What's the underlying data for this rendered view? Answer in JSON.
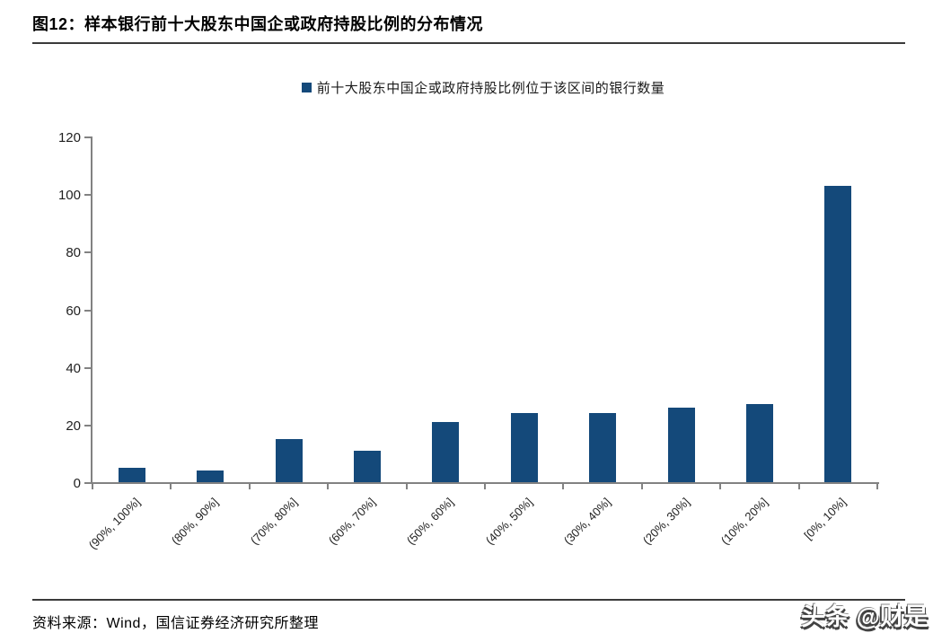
{
  "figure": {
    "title": "图12：样本银行前十大股东中国企或政府持股比例的分布情况",
    "source": "资料来源：Wind，国信证券经济研究所整理",
    "watermark": "头条 @财是"
  },
  "chart_data": {
    "type": "bar",
    "title": "样本银行前十大股东中国企或政府持股比例的分布情况",
    "legend": [
      "前十大股东中国企或政府持股比例位于该区间的银行数量"
    ],
    "legend_position": "top-center",
    "categories": [
      "(90%, 100%]",
      "(80%, 90%]",
      "(70%, 80%]",
      "(60%, 70%]",
      "(50%, 60%]",
      "(40%, 50%]",
      "(30%, 40%]",
      "(20%, 30%]",
      "(10%, 20%]",
      "[0%, 10%]"
    ],
    "values": [
      5,
      4,
      15,
      11,
      21,
      24,
      24,
      26,
      27,
      103
    ],
    "xlabel": "",
    "ylabel": "",
    "ylim": [
      0,
      120
    ],
    "yticks": [
      0,
      20,
      40,
      60,
      80,
      100,
      120
    ],
    "grid": false,
    "bar_color": "#14497A",
    "axis_color": "#828282",
    "tick_label_color": "#1f1f1f"
  }
}
